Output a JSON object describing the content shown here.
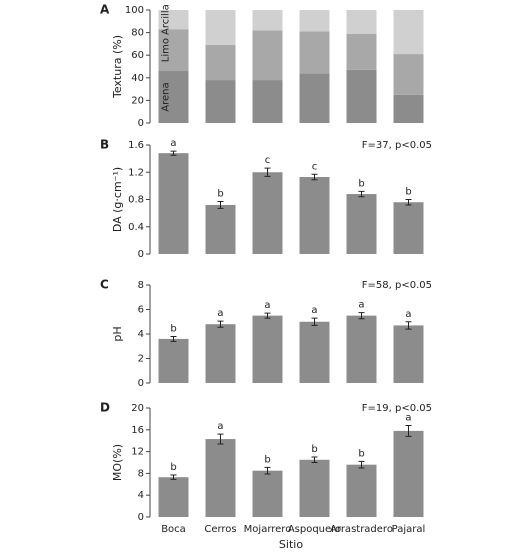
{
  "chart_data": [
    {
      "type": "stacked_bar",
      "panel": "A",
      "ylabel": "Textura (%)",
      "ylim": [
        0,
        100
      ],
      "yticks": [
        0,
        20,
        40,
        60,
        80,
        100
      ],
      "series": [
        {
          "name": "Arena",
          "color": "#8c8c8c",
          "values": [
            46,
            38,
            38,
            44,
            47,
            25
          ]
        },
        {
          "name": "Limo",
          "color": "#a8a8a8",
          "values": [
            37,
            31,
            44,
            37,
            32,
            36
          ]
        },
        {
          "name": "Arcilla",
          "color": "#d0d0d0",
          "values": [
            17,
            31,
            18,
            19,
            21,
            39
          ]
        }
      ]
    },
    {
      "type": "bar",
      "panel": "B",
      "ylabel": "DA (g·cm⁻¹)",
      "annotation": "F=37, p<0.05",
      "color": "#8c8c8c",
      "ylim": [
        0,
        1.6
      ],
      "yticks": [
        0,
        0.4,
        0.8,
        1.2,
        1.6
      ],
      "values": [
        1.48,
        0.72,
        1.2,
        1.13,
        0.88,
        0.76
      ],
      "errors": [
        0.03,
        0.05,
        0.06,
        0.04,
        0.04,
        0.04
      ],
      "letters": [
        "a",
        "b",
        "c",
        "c",
        "b",
        "b"
      ]
    },
    {
      "type": "bar",
      "panel": "C",
      "ylabel": "pH",
      "annotation": "F=58, p<0.05",
      "color": "#8c8c8c",
      "ylim": [
        0,
        8
      ],
      "yticks": [
        0,
        2,
        4,
        6,
        8
      ],
      "values": [
        3.6,
        4.8,
        5.5,
        5.0,
        5.5,
        4.7
      ],
      "errors": [
        0.2,
        0.25,
        0.2,
        0.3,
        0.25,
        0.3
      ],
      "letters": [
        "b",
        "a",
        "a",
        "a",
        "a",
        "a"
      ]
    },
    {
      "type": "bar",
      "panel": "D",
      "ylabel": "MO(%)",
      "annotation": "F=19, p<0.05",
      "color": "#8c8c8c",
      "ylim": [
        0,
        20
      ],
      "yticks": [
        0,
        4,
        8,
        12,
        16,
        20
      ],
      "values": [
        7.3,
        14.3,
        8.5,
        10.5,
        9.6,
        15.8
      ],
      "errors": [
        0.4,
        0.9,
        0.6,
        0.5,
        0.6,
        1.0
      ],
      "letters": [
        "b",
        "a",
        "b",
        "b",
        "b",
        "a"
      ],
      "categories": [
        "Boca",
        "Cerros",
        "Mojarrero",
        "Aspoquero",
        "Arrastradero",
        "Pajaral"
      ],
      "xlabel": "Sitio"
    }
  ]
}
